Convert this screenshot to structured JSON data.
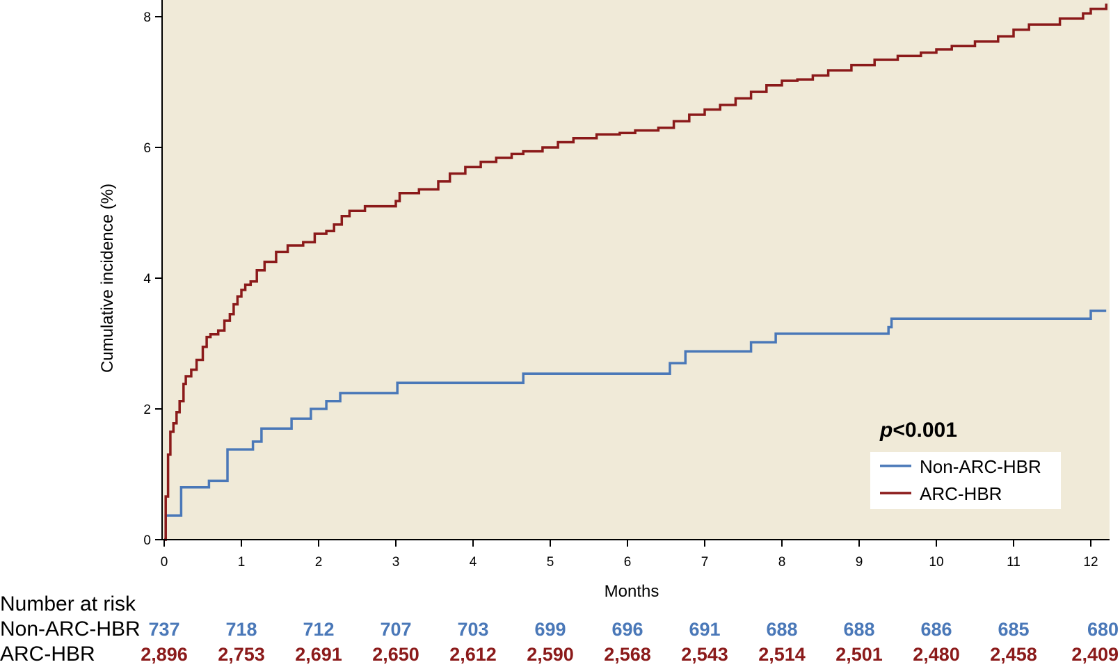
{
  "chart_data": {
    "type": "line",
    "step": true,
    "xlabel": "Months",
    "ylabel": "Cumulative incidence (%)",
    "xlim": [
      0,
      12.2
    ],
    "ylim": [
      0,
      8.2
    ],
    "x_ticks": [
      "0",
      "1",
      "2",
      "3",
      "4",
      "5",
      "6",
      "7",
      "8",
      "9",
      "10",
      "11",
      "12"
    ],
    "y_ticks": [
      "0",
      "2",
      "4",
      "6",
      "8"
    ],
    "grid": false,
    "background_color": "#f0ead8",
    "annotation": {
      "p_letter": "p",
      "p_rest": "<0.001"
    },
    "legend": {
      "position": "bottom-right"
    },
    "series": [
      {
        "name": "Non-ARC-HBR",
        "color": "#4a78b8",
        "x": [
          0,
          0.02,
          0.2,
          0.22,
          0.58,
          0.8,
          0.82,
          1.15,
          1.26,
          1.65,
          1.9,
          2.1,
          2.28,
          3.0,
          3.02,
          4.65,
          6.55,
          6.75,
          7.6,
          7.92,
          9.38,
          9.42,
          12.0,
          12.2
        ],
        "y": [
          0,
          0.37,
          0.37,
          0.8,
          0.9,
          0.9,
          1.38,
          1.5,
          1.7,
          1.85,
          2.0,
          2.12,
          2.24,
          2.24,
          2.4,
          2.54,
          2.7,
          2.88,
          3.02,
          3.15,
          3.25,
          3.38,
          3.5,
          3.5
        ]
      },
      {
        "name": "ARC-HBR",
        "color": "#8b1a1a",
        "x": [
          0,
          0.02,
          0.05,
          0.08,
          0.12,
          0.16,
          0.2,
          0.25,
          0.28,
          0.35,
          0.42,
          0.5,
          0.55,
          0.6,
          0.7,
          0.78,
          0.85,
          0.9,
          0.95,
          1.0,
          1.05,
          1.12,
          1.2,
          1.3,
          1.45,
          1.6,
          1.8,
          1.95,
          2.1,
          2.2,
          2.3,
          2.4,
          2.6,
          2.8,
          3.0,
          3.05,
          3.3,
          3.55,
          3.7,
          3.9,
          4.1,
          4.3,
          4.5,
          4.65,
          4.9,
          5.1,
          5.3,
          5.6,
          5.9,
          6.1,
          6.4,
          6.6,
          6.8,
          7.0,
          7.2,
          7.4,
          7.6,
          7.8,
          8.0,
          8.2,
          8.4,
          8.6,
          8.9,
          9.2,
          9.5,
          9.8,
          10.0,
          10.2,
          10.5,
          10.8,
          11.0,
          11.2,
          11.6,
          11.9,
          12.0,
          12.2
        ],
        "y": [
          0,
          0.66,
          1.3,
          1.65,
          1.78,
          1.95,
          2.12,
          2.38,
          2.5,
          2.6,
          2.75,
          2.95,
          3.1,
          3.14,
          3.2,
          3.35,
          3.45,
          3.6,
          3.72,
          3.82,
          3.9,
          3.95,
          4.12,
          4.25,
          4.4,
          4.5,
          4.55,
          4.68,
          4.72,
          4.82,
          4.95,
          5.03,
          5.1,
          5.1,
          5.18,
          5.3,
          5.36,
          5.48,
          5.6,
          5.7,
          5.78,
          5.84,
          5.9,
          5.94,
          6.0,
          6.08,
          6.14,
          6.2,
          6.22,
          6.26,
          6.3,
          6.4,
          6.5,
          6.58,
          6.65,
          6.75,
          6.85,
          6.95,
          7.02,
          7.04,
          7.1,
          7.18,
          7.26,
          7.34,
          7.4,
          7.45,
          7.5,
          7.55,
          7.62,
          7.7,
          7.8,
          7.88,
          7.97,
          8.05,
          8.12,
          8.2
        ]
      }
    ]
  },
  "risk_table": {
    "title": "Number at risk",
    "rows": [
      {
        "label": "Non-ARC-HBR",
        "color": "#4a78b8",
        "values": [
          "737",
          "718",
          "712",
          "707",
          "703",
          "699",
          "696",
          "691",
          "688",
          "688",
          "686",
          "685",
          "680"
        ]
      },
      {
        "label": "ARC-HBR",
        "color": "#8b1a1a",
        "values": [
          "2,896",
          "2,753",
          "2,691",
          "2,650",
          "2,612",
          "2,590",
          "2,568",
          "2,543",
          "2,514",
          "2,501",
          "2,480",
          "2,458",
          "2,409"
        ]
      }
    ]
  }
}
